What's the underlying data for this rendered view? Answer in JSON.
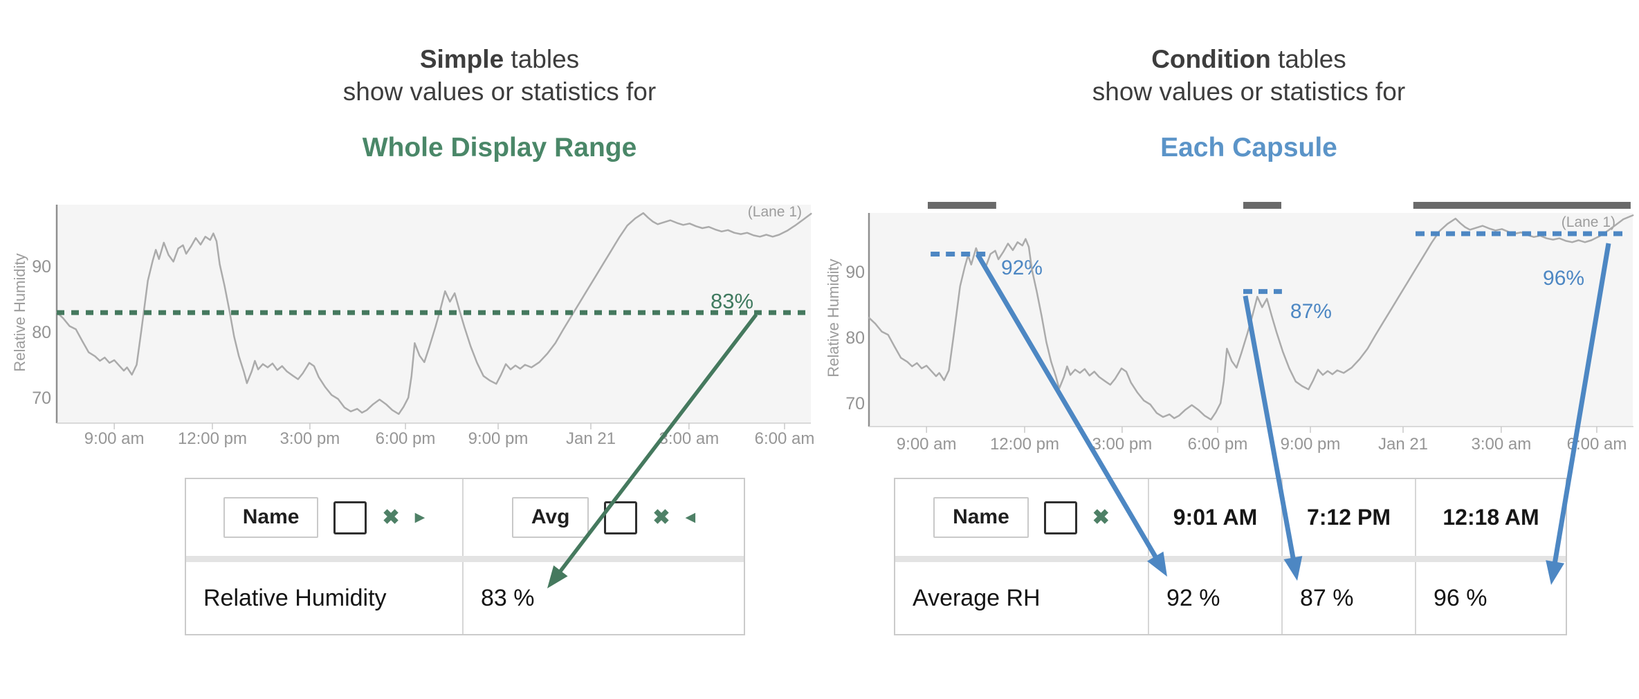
{
  "colors": {
    "green_title": "#4a8768",
    "green_accent": "#45795e",
    "green_label": "#3f7a5f",
    "green_icon": "#4e8066",
    "blue_title": "#5b94c8",
    "blue_accent": "#4d87c3",
    "title_text": "#3d3d3d",
    "curve_gray": "#ababab",
    "capsule_gray": "#6a6a6a",
    "axis_line": "#8f8f8f",
    "axis_text": "#969696",
    "plot_bg": "#f5f5f5"
  },
  "icons": {
    "remove": "✖",
    "tri_right": "▶",
    "tri_left": "◀"
  },
  "left_panel": {
    "title_bold": "Simple",
    "title_rest": " tables",
    "title_line2": "show values or statistics for",
    "title_highlight": "Whole Display Range",
    "lane_label": "(Lane 1)",
    "y_axis_label": "Relative Humidity",
    "table": {
      "name_header": "Name",
      "stat_header": "Avg",
      "row_name": "Relative Humidity",
      "row_value": "83 %"
    }
  },
  "right_panel": {
    "title_bold": "Condition",
    "title_rest": " tables",
    "title_line2": "show values or statistics for",
    "title_highlight": "Each Capsule",
    "lane_label": "(Lane 1)",
    "y_axis_label": "Relative Humidity",
    "table": {
      "name_header": "Name",
      "column_headers": [
        "9:01 AM",
        "7:12 PM",
        "12:18 AM"
      ],
      "row_name": "Average RH",
      "row_values": [
        "92 %",
        "87 %",
        "96 %"
      ]
    }
  },
  "chart_data": [
    {
      "type": "line",
      "title": "Simple tables - statistic over Whole Display Range",
      "ylabel": "Relative Humidity",
      "ylim": [
        66.5,
        99.5
      ],
      "grid": false,
      "lane": "(Lane 1)",
      "x_ticks": [
        {
          "label": "9:00 am",
          "t": 1.8
        },
        {
          "label": "12:00 pm",
          "t": 4.87
        },
        {
          "label": "3:00 pm",
          "t": 7.92
        },
        {
          "label": "6:00 pm",
          "t": 10.91
        },
        {
          "label": "9:00 pm",
          "t": 13.81
        },
        {
          "label": "Jan 21",
          "t": 16.71
        },
        {
          "label": "3:00 am",
          "t": 19.78
        },
        {
          "label": "6:00 am",
          "t": 22.77
        }
      ],
      "y_ticks": [
        {
          "label": "90",
          "v": 90
        },
        {
          "label": "80",
          "v": 80
        },
        {
          "label": "70",
          "v": 70
        }
      ],
      "series": [
        {
          "name": "Relative Humidity",
          "unit": "%",
          "points": [
            [
              0,
              83.2
            ],
            [
              0.2,
              82.3
            ],
            [
              0.4,
              81.1
            ],
            [
              0.6,
              80.6
            ],
            [
              0.8,
              78.8
            ],
            [
              1,
              77.1
            ],
            [
              1.2,
              76.5
            ],
            [
              1.35,
              75.8
            ],
            [
              1.5,
              76.3
            ],
            [
              1.65,
              75.5
            ],
            [
              1.8,
              75.9
            ],
            [
              1.95,
              75.1
            ],
            [
              2.1,
              74.3
            ],
            [
              2.2,
              74.8
            ],
            [
              2.35,
              73.7
            ],
            [
              2.5,
              75.2
            ],
            [
              2.65,
              80.5
            ],
            [
              2.85,
              88
            ],
            [
              3,
              91
            ],
            [
              3.1,
              92.7
            ],
            [
              3.2,
              91.3
            ],
            [
              3.35,
              93.8
            ],
            [
              3.5,
              91.9
            ],
            [
              3.65,
              90.9
            ],
            [
              3.8,
              92.9
            ],
            [
              3.95,
              93.4
            ],
            [
              4.05,
              92.1
            ],
            [
              4.2,
              93.2
            ],
            [
              4.35,
              94.5
            ],
            [
              4.5,
              93.5
            ],
            [
              4.65,
              94.7
            ],
            [
              4.8,
              94.2
            ],
            [
              4.9,
              95.2
            ],
            [
              5,
              94
            ],
            [
              5.1,
              90.5
            ],
            [
              5.25,
              87.2
            ],
            [
              5.4,
              83.5
            ],
            [
              5.55,
              79.5
            ],
            [
              5.7,
              76.5
            ],
            [
              5.85,
              74.2
            ],
            [
              5.95,
              72.4
            ],
            [
              6.1,
              74.2
            ],
            [
              6.2,
              75.8
            ],
            [
              6.3,
              74.5
            ],
            [
              6.45,
              75.3
            ],
            [
              6.6,
              74.8
            ],
            [
              6.75,
              75.4
            ],
            [
              6.9,
              74.4
            ],
            [
              7.05,
              75
            ],
            [
              7.2,
              74.2
            ],
            [
              7.4,
              73.5
            ],
            [
              7.55,
              73
            ],
            [
              7.7,
              73.9
            ],
            [
              7.9,
              75.5
            ],
            [
              8.05,
              75
            ],
            [
              8.2,
              73.3
            ],
            [
              8.4,
              71.8
            ],
            [
              8.6,
              70.6
            ],
            [
              8.8,
              70
            ],
            [
              9,
              68.7
            ],
            [
              9.2,
              68.1
            ],
            [
              9.4,
              68.5
            ],
            [
              9.55,
              67.9
            ],
            [
              9.7,
              68.3
            ],
            [
              9.9,
              69.2
            ],
            [
              10.1,
              69.9
            ],
            [
              10.3,
              69.2
            ],
            [
              10.5,
              68.3
            ],
            [
              10.7,
              67.7
            ],
            [
              10.85,
              68.8
            ],
            [
              11,
              70.2
            ],
            [
              11.1,
              73.5
            ],
            [
              11.2,
              78.5
            ],
            [
              11.35,
              76.6
            ],
            [
              11.5,
              75.6
            ],
            [
              11.65,
              77.8
            ],
            [
              11.85,
              81
            ],
            [
              12,
              83.6
            ],
            [
              12.15,
              86.4
            ],
            [
              12.3,
              84.8
            ],
            [
              12.45,
              86.1
            ],
            [
              12.6,
              83.5
            ],
            [
              12.75,
              81
            ],
            [
              12.95,
              78
            ],
            [
              13.15,
              75.5
            ],
            [
              13.35,
              73.5
            ],
            [
              13.55,
              72.8
            ],
            [
              13.75,
              72.3
            ],
            [
              13.9,
              73.7
            ],
            [
              14.05,
              75.3
            ],
            [
              14.2,
              74.5
            ],
            [
              14.35,
              75.1
            ],
            [
              14.5,
              74.6
            ],
            [
              14.65,
              75.2
            ],
            [
              14.85,
              74.8
            ],
            [
              15.1,
              75.6
            ],
            [
              15.35,
              76.9
            ],
            [
              15.6,
              78.5
            ],
            [
              15.85,
              80.6
            ],
            [
              16.1,
              82.6
            ],
            [
              16.35,
              84.6
            ],
            [
              16.6,
              86.6
            ],
            [
              16.85,
              88.6
            ],
            [
              17.1,
              90.6
            ],
            [
              17.35,
              92.6
            ],
            [
              17.6,
              94.6
            ],
            [
              17.85,
              96.4
            ],
            [
              18.1,
              97.5
            ],
            [
              18.35,
              98.3
            ],
            [
              18.5,
              97.6
            ],
            [
              18.65,
              97
            ],
            [
              18.8,
              96.6
            ],
            [
              19,
              96.9
            ],
            [
              19.2,
              97.2
            ],
            [
              19.4,
              96.8
            ],
            [
              19.6,
              96.5
            ],
            [
              19.8,
              96.7
            ],
            [
              20,
              96.3
            ],
            [
              20.2,
              96
            ],
            [
              20.4,
              96.2
            ],
            [
              20.6,
              95.8
            ],
            [
              20.8,
              95.5
            ],
            [
              21,
              95.7
            ],
            [
              21.2,
              95.3
            ],
            [
              21.4,
              95.1
            ],
            [
              21.6,
              95.3
            ],
            [
              21.8,
              94.9
            ],
            [
              22,
              94.7
            ],
            [
              22.2,
              95
            ],
            [
              22.4,
              94.7
            ],
            [
              22.6,
              95
            ],
            [
              22.85,
              95.6
            ],
            [
              23.1,
              96.4
            ],
            [
              23.35,
              97.3
            ],
            [
              23.6,
              98.2
            ],
            [
              23.9,
              98.8
            ]
          ]
        }
      ],
      "annotations": [
        {
          "label": "83%",
          "stat": "Avg",
          "value": 83,
          "t0": 0,
          "t1": 23.55,
          "v": 83.15
        }
      ]
    },
    {
      "type": "line",
      "title": "Condition tables - statistic per Each Capsule",
      "ylabel": "Relative Humidity",
      "ylim": [
        66.5,
        99.5
      ],
      "grid": false,
      "lane": "(Lane 1)",
      "x_ticks": [
        {
          "label": "9:00 am",
          "t": 1.8
        },
        {
          "label": "12:00 pm",
          "t": 4.87
        },
        {
          "label": "3:00 pm",
          "t": 7.92
        },
        {
          "label": "6:00 pm",
          "t": 10.91
        },
        {
          "label": "9:00 pm",
          "t": 13.81
        },
        {
          "label": "Jan 21",
          "t": 16.71
        },
        {
          "label": "3:00 am",
          "t": 19.78
        },
        {
          "label": "6:00 am",
          "t": 22.77
        }
      ],
      "y_ticks": [
        {
          "label": "90",
          "v": 90
        },
        {
          "label": "80",
          "v": 80
        },
        {
          "label": "70",
          "v": 70
        }
      ],
      "series": [
        {
          "name": "Relative Humidity",
          "unit": "%",
          "points": "same_as_chart_0"
        }
      ],
      "capsules": [
        {
          "start": "9:01 AM",
          "avg": 92,
          "avg_label": "92%",
          "t0": 1.84,
          "t1": 3.98
        },
        {
          "start": "7:12 PM",
          "avg": 87,
          "avg_label": "87%",
          "t0": 11.71,
          "t1": 12.9
        },
        {
          "start": "12:18 AM",
          "avg": 96,
          "avg_label": "96%",
          "t0": 17.03,
          "t1": 23.83
        }
      ],
      "annotations": [
        {
          "label": "92%",
          "stat": "Avg",
          "value": 92,
          "t0": 1.93,
          "t1": 3.7,
          "v": 92.9
        },
        {
          "label": "87%",
          "stat": "Avg",
          "value": 87,
          "t0": 11.71,
          "t1": 12.92,
          "v": 87.2
        },
        {
          "label": "96%",
          "stat": "Avg",
          "value": 96,
          "t0": 17.1,
          "t1": 23.68,
          "v": 96.0
        }
      ]
    }
  ]
}
